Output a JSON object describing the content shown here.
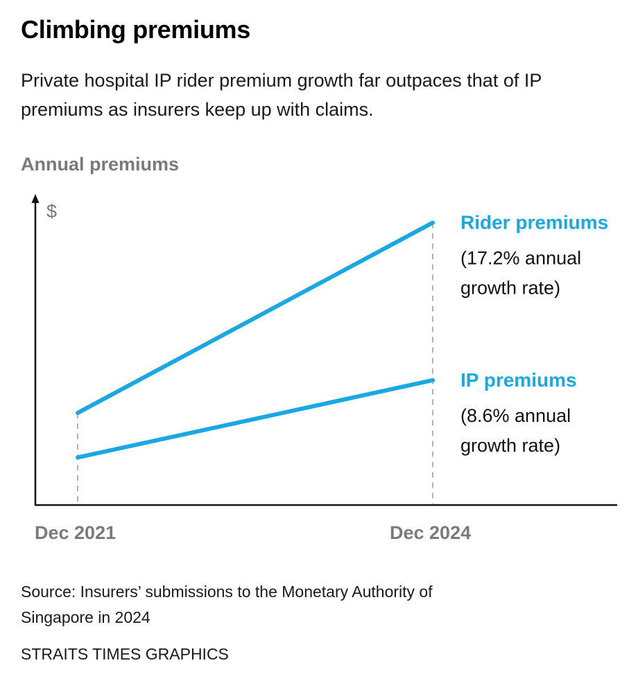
{
  "header": {
    "title": "Climbing premiums",
    "subtitle": "Private hospital IP rider premium growth far outpaces that of IP premiums as insurers keep up with claims."
  },
  "footer": {
    "source": "Source: Insurers’ submissions to the Monetary Authority of Singapore in 2024",
    "credit": "STRAITS TIMES GRAPHICS"
  },
  "colors": {
    "series": "#1aa8e2",
    "axis": "#111111",
    "muted": "#7a7a7a",
    "guide": "#9a9a9a"
  },
  "chart_data": {
    "type": "line",
    "title": "Climbing premiums",
    "ylabel": "Annual premiums",
    "yunit": "$",
    "xlabel": "",
    "x": [
      "Dec 2021",
      "Dec 2024"
    ],
    "y_ticks_shown": false,
    "ylim_relative": [
      0,
      1
    ],
    "note": "Schematic chart without numeric y-axis; values are relative heights on the $ axis.",
    "series": [
      {
        "name": "Rider premiums",
        "annotation": "(17.2% annual growth rate)",
        "annotation_lines": [
          "(17.2% annual",
          "growth rate)"
        ],
        "values": [
          0.31,
          0.95
        ]
      },
      {
        "name": "IP premiums",
        "annotation": "(8.6% annual growth rate)",
        "annotation_lines": [
          "(8.6% annual",
          "growth rate)"
        ],
        "values": [
          0.16,
          0.42
        ]
      }
    ],
    "grid": false,
    "legend": "direct labels right of line ends"
  }
}
